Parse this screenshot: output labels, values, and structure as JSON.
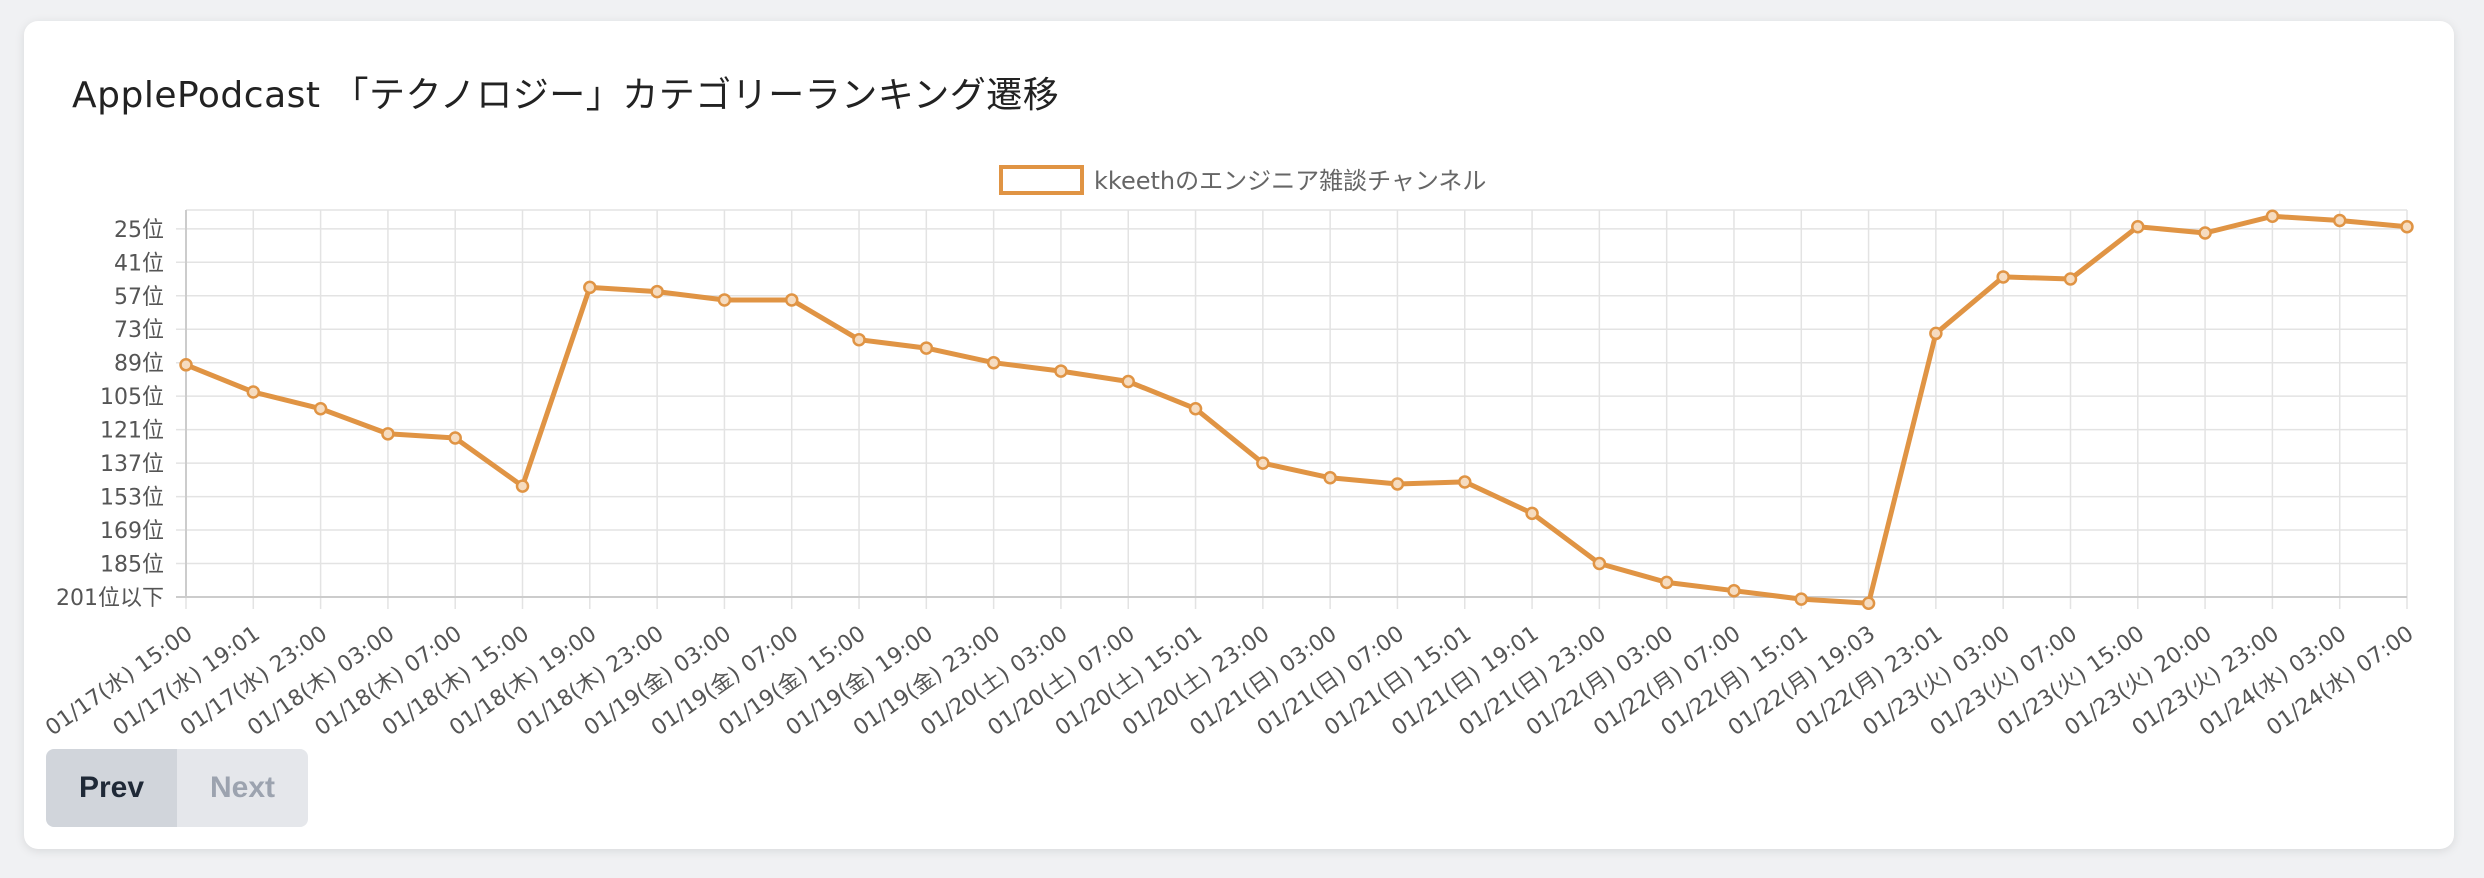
{
  "title": "ApplePodcast 「テクノロジー」カテゴリーランキング遷移",
  "pager": {
    "prev_label": "Prev",
    "next_label": "Next"
  },
  "colors": {
    "series": "#e09444",
    "grid": "#e3e3e3",
    "axis_text": "#555555"
  },
  "chart_data": {
    "type": "line",
    "title": "",
    "xlabel": "",
    "ylabel": "",
    "y_reversed": true,
    "ylim": [
      201,
      16
    ],
    "y_ticks": [
      {
        "value": 25,
        "label": "25位"
      },
      {
        "value": 41,
        "label": "41位"
      },
      {
        "value": 57,
        "label": "57位"
      },
      {
        "value": 73,
        "label": "73位"
      },
      {
        "value": 89,
        "label": "89位"
      },
      {
        "value": 105,
        "label": "105位"
      },
      {
        "value": 121,
        "label": "121位"
      },
      {
        "value": 137,
        "label": "137位"
      },
      {
        "value": 153,
        "label": "153位"
      },
      {
        "value": 169,
        "label": "169位"
      },
      {
        "value": 185,
        "label": "185位"
      },
      {
        "value": 201,
        "label": "201位以下"
      }
    ],
    "categories": [
      "01/17(水) 15:00",
      "01/17(水) 19:01",
      "01/17(水) 23:00",
      "01/18(木) 03:00",
      "01/18(木) 07:00",
      "01/18(木) 15:00",
      "01/18(木) 19:00",
      "01/18(木) 23:00",
      "01/19(金) 03:00",
      "01/19(金) 07:00",
      "01/19(金) 15:00",
      "01/19(金) 19:00",
      "01/19(金) 23:00",
      "01/20(土) 03:00",
      "01/20(土) 07:00",
      "01/20(土) 15:01",
      "01/20(土) 23:00",
      "01/21(日) 03:00",
      "01/21(日) 07:00",
      "01/21(日) 15:01",
      "01/21(日) 19:01",
      "01/21(日) 23:00",
      "01/22(月) 03:00",
      "01/22(月) 07:00",
      "01/22(月) 15:01",
      "01/22(月) 19:03",
      "01/22(月) 23:01",
      "01/23(火) 03:00",
      "01/23(火) 07:00",
      "01/23(火) 15:00",
      "01/23(火) 20:00",
      "01/23(火) 23:00",
      "01/24(水) 03:00",
      "01/24(水) 07:00"
    ],
    "series": [
      {
        "name": "kkeethのエンジニア雑談チャンネル",
        "values": [
          90,
          103,
          111,
          123,
          125,
          148,
          53,
          55,
          59,
          59,
          78,
          82,
          89,
          93,
          98,
          111,
          137,
          144,
          147,
          146,
          161,
          185,
          194,
          198,
          202,
          204,
          75,
          48,
          49,
          24,
          27,
          19,
          21,
          24
        ]
      }
    ],
    "legend": "top-center",
    "grid": true
  }
}
